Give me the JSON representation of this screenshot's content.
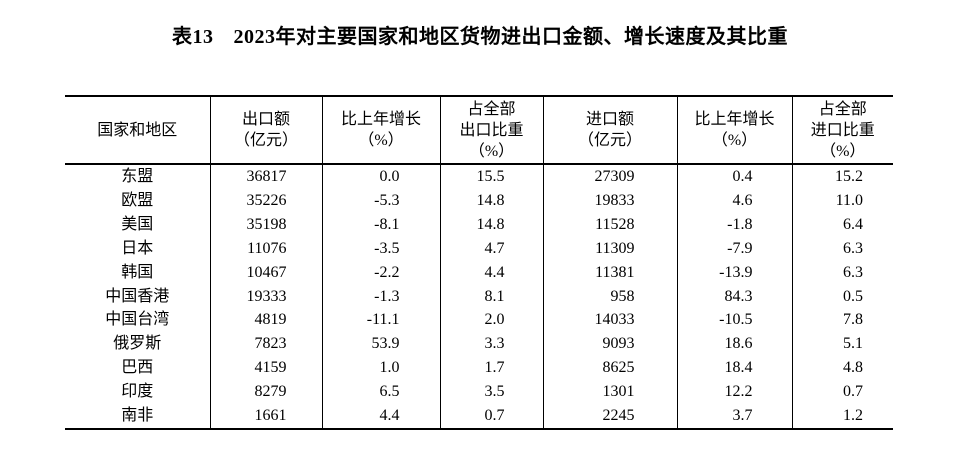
{
  "title": {
    "prefix": "表13",
    "text": "2023年对主要国家和地区货物进出口金额、增长速度及其比重"
  },
  "table": {
    "columns": [
      {
        "name": "country-region",
        "lines": [
          "国家和地区"
        ]
      },
      {
        "name": "export-amount",
        "lines": [
          "出口额",
          "（亿元）"
        ]
      },
      {
        "name": "export-growth",
        "lines": [
          "比上年增长",
          "（%）"
        ]
      },
      {
        "name": "export-share",
        "lines": [
          "占全部",
          "出口比重",
          "（%）"
        ]
      },
      {
        "name": "import-amount",
        "lines": [
          "进口额",
          "（亿元）"
        ]
      },
      {
        "name": "import-growth",
        "lines": [
          "比上年增长",
          "（%）"
        ]
      },
      {
        "name": "import-share",
        "lines": [
          "占全部",
          "进口比重",
          "（%）"
        ]
      }
    ],
    "rows": [
      [
        "东盟",
        "36817",
        "0.0",
        "15.5",
        "27309",
        "0.4",
        "15.2"
      ],
      [
        "欧盟",
        "35226",
        "-5.3",
        "14.8",
        "19833",
        "4.6",
        "11.0"
      ],
      [
        "美国",
        "35198",
        "-8.1",
        "14.8",
        "11528",
        "-1.8",
        "6.4"
      ],
      [
        "日本",
        "11076",
        "-3.5",
        "4.7",
        "11309",
        "-7.9",
        "6.3"
      ],
      [
        "韩国",
        "10467",
        "-2.2",
        "4.4",
        "11381",
        "-13.9",
        "6.3"
      ],
      [
        "中国香港",
        "19333",
        "-1.3",
        "8.1",
        "958",
        "84.3",
        "0.5"
      ],
      [
        "中国台湾",
        "4819",
        "-11.1",
        "2.0",
        "14033",
        "-10.5",
        "7.8"
      ],
      [
        "俄罗斯",
        "7823",
        "53.9",
        "3.3",
        "9093",
        "18.6",
        "5.1"
      ],
      [
        "巴西",
        "4159",
        "1.0",
        "1.7",
        "8625",
        "18.4",
        "4.8"
      ],
      [
        "印度",
        "8279",
        "6.5",
        "3.5",
        "1301",
        "12.2",
        "0.7"
      ],
      [
        "南非",
        "1661",
        "4.4",
        "0.7",
        "2245",
        "3.7",
        "1.2"
      ]
    ]
  },
  "colors": {
    "text": "#000000",
    "border": "#000000",
    "background": "#ffffff"
  }
}
